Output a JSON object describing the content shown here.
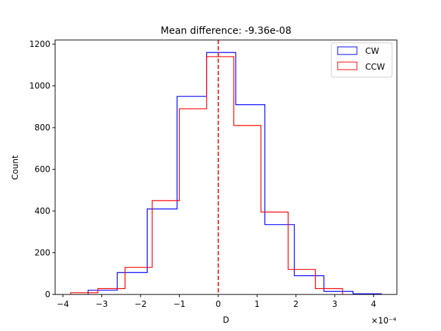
{
  "chart_data": {
    "type": "histogram-step",
    "title": "Mean difference: -9.36e-08",
    "xlabel": "D",
    "ylabel": "Count",
    "x_scale_label": "×10⁻⁴",
    "xlim": [
      -4.2,
      4.6
    ],
    "ylim": [
      0,
      1220
    ],
    "x_ticks": [
      -4,
      -3,
      -2,
      -1,
      0,
      1,
      2,
      3,
      4
    ],
    "x_tick_labels": [
      "−4",
      "−3",
      "−2",
      "−1",
      "0",
      "1",
      "2",
      "3",
      "4"
    ],
    "y_ticks": [
      0,
      200,
      400,
      600,
      800,
      1000,
      1200
    ],
    "y_tick_labels": [
      "0",
      "200",
      "400",
      "600",
      "800",
      "1000",
      "1200"
    ],
    "mean_line": {
      "x": 0,
      "color": "#ff0000",
      "style": "dashed"
    },
    "legend_position": "top-right",
    "series": [
      {
        "name": "CW",
        "color": "#0000ff",
        "edges": [
          -3.35,
          -2.6,
          -1.83,
          -1.06,
          -0.3,
          0.45,
          1.2,
          1.96,
          2.72,
          3.47,
          4.2
        ],
        "counts": [
          20,
          105,
          410,
          950,
          1160,
          910,
          335,
          90,
          15,
          3
        ]
      },
      {
        "name": "CCW",
        "color": "#ff0000",
        "edges": [
          -3.8,
          -3.1,
          -2.4,
          -1.7,
          -1.0,
          -0.3,
          0.4,
          1.1,
          1.8,
          2.5,
          3.2
        ],
        "counts": [
          8,
          28,
          130,
          450,
          890,
          1140,
          810,
          395,
          120,
          28
        ]
      }
    ]
  }
}
